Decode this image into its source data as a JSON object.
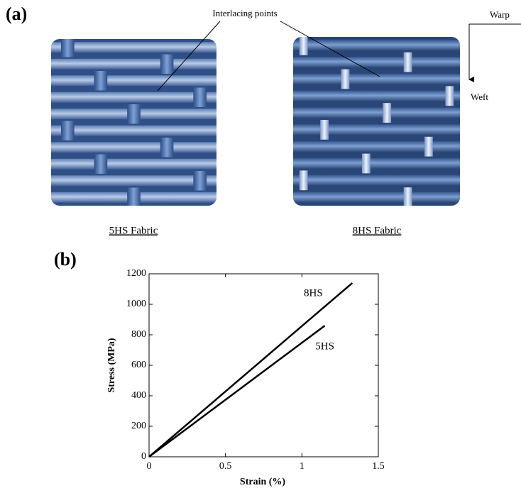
{
  "panel_a": {
    "label": "(a)",
    "annotation": "Interlacing points",
    "fabrics": [
      "5HS Fabric",
      "8HS Fabric"
    ],
    "warp": "Warp",
    "weft": "Weft"
  },
  "chart_data": {
    "type": "line",
    "panel_label": "(b)",
    "x_label": "Strain (%)",
    "y_label": "Stress (MPa)",
    "xlim": [
      0,
      1.5
    ],
    "ylim": [
      0,
      1200
    ],
    "xticks": [
      0,
      0.5,
      1,
      1.5
    ],
    "yticks": [
      0,
      200,
      400,
      600,
      800,
      1000,
      1200
    ],
    "series": [
      {
        "name": "8HS",
        "color": "#000000",
        "x": [
          0,
          1.33
        ],
        "values": [
          0,
          1140
        ]
      },
      {
        "name": "5HS",
        "color": "#000000",
        "x": [
          0,
          1.15
        ],
        "values": [
          0,
          860
        ]
      }
    ]
  }
}
